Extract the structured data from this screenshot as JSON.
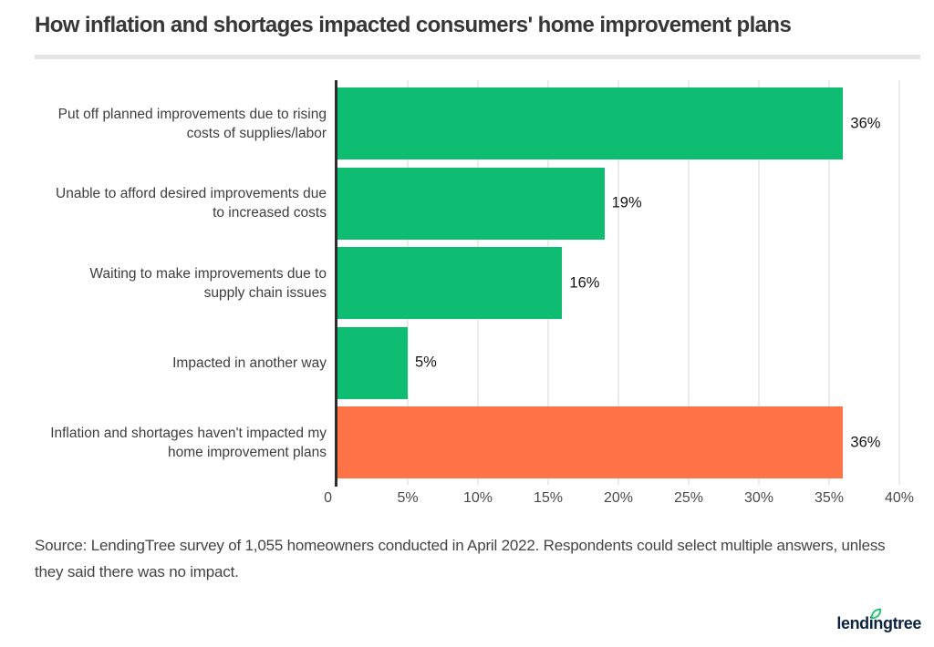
{
  "title": "How inflation and shortages impacted consumers' home improvement plans",
  "chart_data": {
    "type": "bar",
    "orientation": "horizontal",
    "categories": [
      "Put off planned improvements due to rising\ncosts of supplies/labor",
      "Unable to afford desired improvements due\nto increased costs",
      "Waiting to make improvements due to\nsupply chain issues",
      "Impacted in another way",
      "Inflation and shortages haven't impacted my\nhome improvement plans"
    ],
    "values": [
      36,
      19,
      16,
      5,
      36
    ],
    "value_labels": [
      "36%",
      "19%",
      "16%",
      "5%",
      "36%"
    ],
    "bar_colors": [
      "#0ebc72",
      "#0ebc72",
      "#0ebc72",
      "#0ebc72",
      "#ff7348"
    ],
    "xlabel": "",
    "ylabel": "",
    "xlim": [
      0,
      40
    ],
    "x_ticks": [
      {
        "label": "0",
        "value": 0
      },
      {
        "label": "5%",
        "value": 5
      },
      {
        "label": "10%",
        "value": 10
      },
      {
        "label": "15%",
        "value": 15
      },
      {
        "label": "20%",
        "value": 20
      },
      {
        "label": "25%",
        "value": 25
      },
      {
        "label": "30%",
        "value": 30
      },
      {
        "label": "35%",
        "value": 35
      },
      {
        "label": "40%",
        "value": 40
      }
    ],
    "gridlines_at": [
      5,
      10,
      15,
      20,
      25,
      30,
      35,
      40
    ],
    "grid": true,
    "legend": false,
    "colors": {
      "green": "#0ebc72",
      "orange": "#ff7348",
      "axis_line": "#2c2c2c",
      "gridline": "#ebebeb"
    }
  },
  "source_note_lines": [
    "Source: LendingTree survey of 1,055 homeowners conducted in April 2022. Respondents could select multiple answers, unless",
    "they said there was no impact."
  ],
  "logo": {
    "text": "lendingtree",
    "text_color": "#0c2340",
    "leaf_color": "#1fc06f"
  }
}
